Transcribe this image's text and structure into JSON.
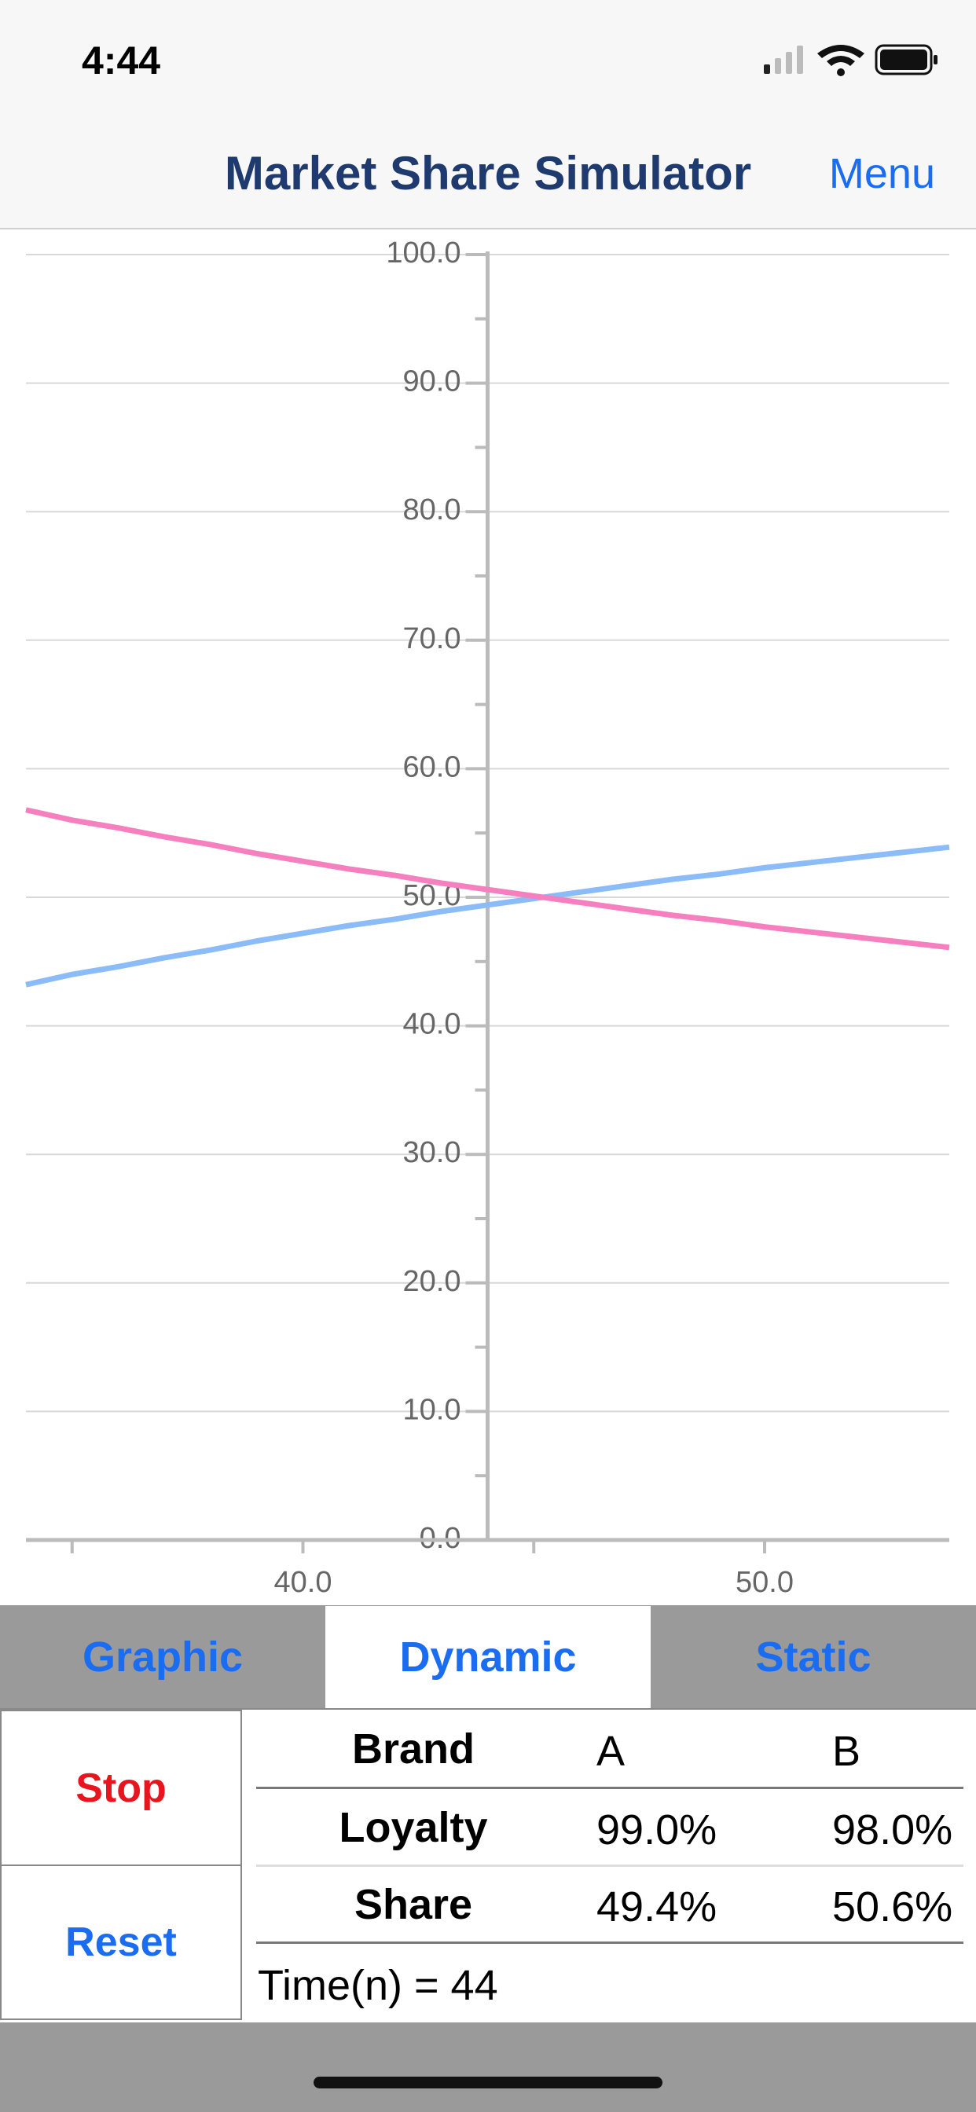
{
  "status_bar": {
    "time": "4:44"
  },
  "nav": {
    "title": "Market Share Simulator",
    "menu": "Menu"
  },
  "chart_data": {
    "type": "line",
    "x": [
      34,
      35,
      36,
      37,
      38,
      39,
      40,
      41,
      42,
      43,
      44,
      45,
      46,
      47,
      48,
      49,
      50,
      51,
      52,
      53,
      54
    ],
    "xlim": [
      34,
      54
    ],
    "xticks": [
      {
        "value": 40,
        "label": "40.0"
      },
      {
        "value": 50,
        "label": "50.0"
      }
    ],
    "xminorticks": [
      35,
      45
    ],
    "ylim": [
      0,
      100
    ],
    "yticks": [
      {
        "value": 0,
        "label": "0.0"
      },
      {
        "value": 10,
        "label": "10.0"
      },
      {
        "value": 20,
        "label": "20.0"
      },
      {
        "value": 30,
        "label": "30.0"
      },
      {
        "value": 40,
        "label": "40.0"
      },
      {
        "value": 50,
        "label": "50.0"
      },
      {
        "value": 60,
        "label": "60.0"
      },
      {
        "value": 70,
        "label": "70.0"
      },
      {
        "value": 80,
        "label": "80.0"
      },
      {
        "value": 90,
        "label": "90.0"
      },
      {
        "value": 100,
        "label": "100.0"
      }
    ],
    "yminorticks": [
      5,
      15,
      25,
      35,
      45,
      55,
      65,
      75,
      85,
      95
    ],
    "grid": true,
    "series": [
      {
        "color": "#8bbcf7",
        "values": [
          43.2,
          44.0,
          44.6,
          45.3,
          45.9,
          46.6,
          47.2,
          47.8,
          48.3,
          48.9,
          49.4,
          49.9,
          50.4,
          50.9,
          51.4,
          51.8,
          52.3,
          52.7,
          53.1,
          53.5,
          53.9
        ]
      },
      {
        "color": "#f57fbf",
        "values": [
          56.8,
          56.0,
          55.4,
          54.7,
          54.1,
          53.4,
          52.8,
          52.2,
          51.7,
          51.1,
          50.6,
          50.1,
          49.6,
          49.1,
          48.6,
          48.2,
          47.7,
          47.3,
          46.9,
          46.5,
          46.1
        ]
      }
    ]
  },
  "tabs": [
    "Graphic",
    "Dynamic",
    "Static"
  ],
  "buttons": {
    "stop": "Stop",
    "reset": "Reset"
  },
  "table": {
    "header": [
      "Brand",
      "A",
      "B"
    ],
    "rows": [
      [
        "Loyalty",
        "99.0%",
        "98.0%"
      ],
      [
        "Share",
        "49.4%",
        "50.6%"
      ]
    ],
    "time_label": "Time(n) =",
    "time": 44
  }
}
